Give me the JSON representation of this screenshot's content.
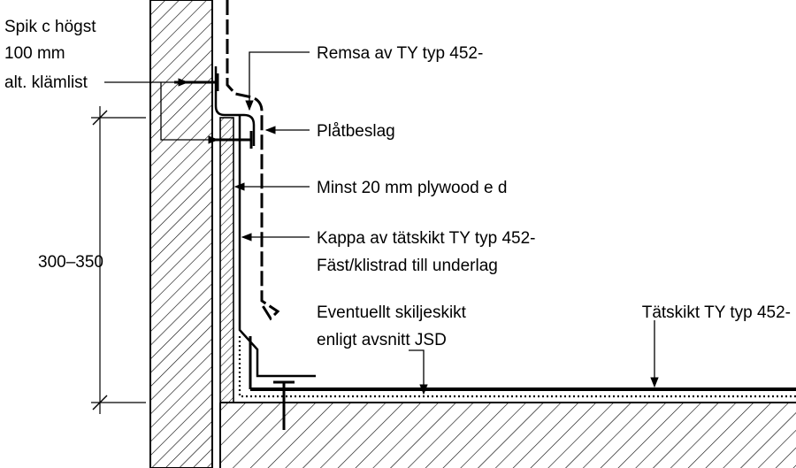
{
  "labels": {
    "spik_line1": "Spik c högst",
    "spik_line2": "100 mm",
    "spik_line3": "alt. klämlist",
    "remsa": "Remsa av TY typ 452-",
    "platbeslag": "Plåtbeslag",
    "plywood": "Minst 20 mm plywood e d",
    "kappa_line1": "Kappa av tätskikt TY typ 452-",
    "kappa_line2": "Fäst/klistrad till underlag",
    "skiljeskikt_line1": "Eventuellt skiljeskikt",
    "skiljeskikt_line2": "enligt avsnitt JSD",
    "tatskikt": "Tätskikt TY typ 452-",
    "dimension": "300–350"
  }
}
